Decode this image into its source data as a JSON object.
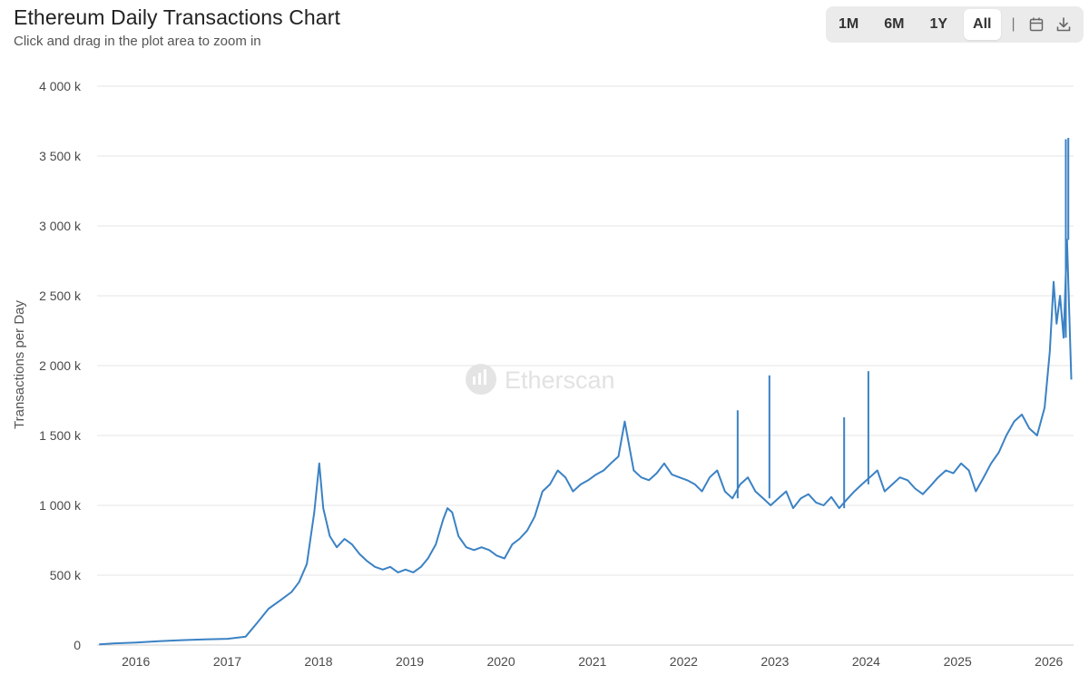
{
  "header": {
    "title": "Ethereum Daily Transactions Chart",
    "subtitle": "Click and drag in the plot area to zoom in"
  },
  "range_selector": {
    "buttons": [
      {
        "label": "1M",
        "active": false
      },
      {
        "label": "6M",
        "active": false
      },
      {
        "label": "1Y",
        "active": false
      },
      {
        "label": "All",
        "active": true
      }
    ],
    "separator": "|",
    "icons": [
      "calendar-icon",
      "download-icon"
    ]
  },
  "watermark": "Etherscan",
  "colors": {
    "line": "#3b82c4",
    "grid": "#e6e6e6",
    "watermark": "#e2e2e2"
  },
  "chart_data": {
    "type": "line",
    "ylabel": "Transactions per Day",
    "xlabel": "",
    "ylim": [
      0,
      4000000
    ],
    "y_ticks": [
      0,
      500000,
      1000000,
      1500000,
      2000000,
      2500000,
      3000000,
      3500000,
      4000000
    ],
    "y_tick_labels": [
      "0",
      "500 k",
      "1 000 k",
      "1 500 k",
      "2 000 k",
      "2 500 k",
      "3 000 k",
      "3 500 k",
      "4 000 k"
    ],
    "x_tick_labels": [
      "2016",
      "2017",
      "2018",
      "2019",
      "2020",
      "2021",
      "2022",
      "2023",
      "2024",
      "2025",
      "2026"
    ],
    "xlim": [
      "2015-07-30",
      "2026-04-10"
    ],
    "grid": true,
    "legend": false,
    "series": [
      {
        "x": [
          "2015-08-07",
          "2015-10-01",
          "2016-01-01",
          "2016-04-01",
          "2016-07-01",
          "2016-10-01",
          "2017-01-01",
          "2017-03-15",
          "2017-05-01",
          "2017-06-15",
          "2017-08-01",
          "2017-09-15",
          "2017-10-15",
          "2017-11-15",
          "2017-12-15",
          "2018-01-04",
          "2018-01-20",
          "2018-02-15",
          "2018-03-15",
          "2018-04-15",
          "2018-05-15",
          "2018-06-15",
          "2018-07-15",
          "2018-08-15",
          "2018-09-15",
          "2018-10-15",
          "2018-11-15",
          "2018-12-15",
          "2019-01-15",
          "2019-02-15",
          "2019-03-15",
          "2019-04-15",
          "2019-05-15",
          "2019-06-01",
          "2019-06-20",
          "2019-07-15",
          "2019-08-15",
          "2019-09-15",
          "2019-10-15",
          "2019-11-15",
          "2019-12-15",
          "2020-01-15",
          "2020-02-15",
          "2020-03-15",
          "2020-04-15",
          "2020-05-15",
          "2020-06-15",
          "2020-07-15",
          "2020-08-15",
          "2020-09-15",
          "2020-10-15",
          "2020-11-15",
          "2020-12-15",
          "2021-01-15",
          "2021-02-15",
          "2021-03-15",
          "2021-04-15",
          "2021-05-10",
          "2021-06-15",
          "2021-07-15",
          "2021-08-15",
          "2021-09-15",
          "2021-10-15",
          "2021-11-15",
          "2021-12-15",
          "2022-01-15",
          "2022-02-15",
          "2022-03-15",
          "2022-04-15",
          "2022-05-15",
          "2022-06-15",
          "2022-07-15",
          "2022-08-15",
          "2022-09-15",
          "2022-10-15",
          "2022-11-15",
          "2022-12-15",
          "2023-01-15",
          "2023-02-15",
          "2023-03-15",
          "2023-04-15",
          "2023-05-15",
          "2023-06-15",
          "2023-07-15",
          "2023-08-15",
          "2023-09-15",
          "2023-10-15",
          "2023-11-15",
          "2023-12-15",
          "2024-01-15",
          "2024-02-15",
          "2024-03-15",
          "2024-04-15",
          "2024-05-15",
          "2024-06-15",
          "2024-07-15",
          "2024-08-15",
          "2024-09-15",
          "2024-10-15",
          "2024-11-15",
          "2024-12-15",
          "2025-01-15",
          "2025-02-15",
          "2025-03-15",
          "2025-04-15",
          "2025-05-15",
          "2025-06-15",
          "2025-07-15",
          "2025-08-15",
          "2025-09-15",
          "2025-10-15",
          "2025-11-15",
          "2025-12-15",
          "2026-01-05",
          "2026-01-20",
          "2026-02-01",
          "2026-02-15",
          "2026-03-01",
          "2026-03-15",
          "2026-04-01"
        ],
        "y": [
          5000,
          12000,
          18000,
          28000,
          35000,
          40000,
          45000,
          60000,
          160000,
          260000,
          320000,
          380000,
          450000,
          580000,
          950000,
          1300000,
          980000,
          780000,
          700000,
          760000,
          720000,
          650000,
          600000,
          560000,
          540000,
          560000,
          520000,
          540000,
          520000,
          560000,
          620000,
          720000,
          900000,
          980000,
          950000,
          780000,
          700000,
          680000,
          700000,
          680000,
          640000,
          620000,
          720000,
          760000,
          820000,
          920000,
          1100000,
          1150000,
          1250000,
          1200000,
          1100000,
          1150000,
          1180000,
          1220000,
          1250000,
          1300000,
          1350000,
          1600000,
          1250000,
          1200000,
          1180000,
          1230000,
          1300000,
          1220000,
          1200000,
          1180000,
          1150000,
          1100000,
          1200000,
          1250000,
          1100000,
          1050000,
          1150000,
          1200000,
          1100000,
          1050000,
          1000000,
          1050000,
          1100000,
          980000,
          1050000,
          1080000,
          1020000,
          1000000,
          1060000,
          980000,
          1040000,
          1100000,
          1150000,
          1200000,
          1250000,
          1100000,
          1150000,
          1200000,
          1180000,
          1120000,
          1080000,
          1140000,
          1200000,
          1250000,
          1230000,
          1300000,
          1250000,
          1100000,
          1200000,
          1300000,
          1380000,
          1500000,
          1600000,
          1650000,
          1550000,
          1500000,
          1700000,
          2100000,
          2600000,
          2300000,
          2500000,
          2200000,
          2900000,
          1900000
        ]
      }
    ],
    "spikes": [
      {
        "x": "2022-08-05",
        "y": 1680000
      },
      {
        "x": "2022-12-10",
        "y": 1930000
      },
      {
        "x": "2023-10-05",
        "y": 1630000
      },
      {
        "x": "2024-01-10",
        "y": 1960000
      },
      {
        "x": "2026-03-10",
        "y": 3620000
      },
      {
        "x": "2026-03-20",
        "y": 3630000
      }
    ]
  }
}
